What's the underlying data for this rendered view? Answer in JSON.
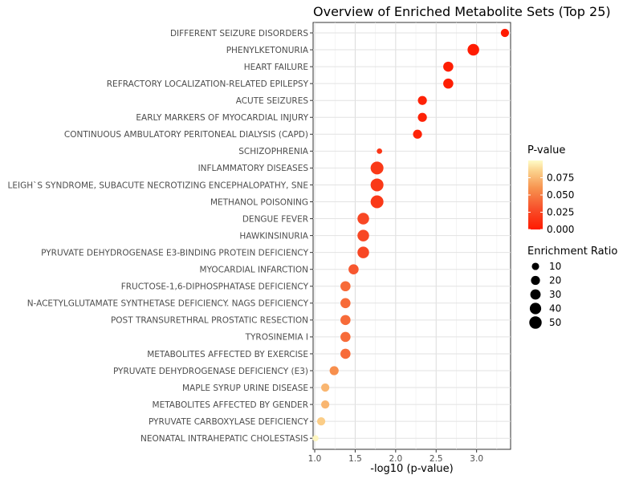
{
  "chart_data": {
    "type": "scatter",
    "title": "Overview of Enriched Metabolite Sets (Top 25)",
    "xlabel": "-log10 (p-value)",
    "ylabel": "",
    "xlim": [
      0.98,
      3.42
    ],
    "xticks": [
      "1.0",
      "1.5",
      "2.0",
      "2.5",
      "3.0"
    ],
    "grid": true,
    "legend_position": "right",
    "points": [
      {
        "name": "DIFFERENT SEIZURE DISORDERS",
        "x": 3.35,
        "p": 0.0005,
        "ratio": 15
      },
      {
        "name": "PHENYLKETONURIA",
        "x": 2.96,
        "p": 0.0011,
        "ratio": 42
      },
      {
        "name": "HEART FAILURE",
        "x": 2.65,
        "p": 0.0022,
        "ratio": 28
      },
      {
        "name": "REFRACTORY LOCALIZATION-RELATED EPILEPSY",
        "x": 2.65,
        "p": 0.0022,
        "ratio": 28
      },
      {
        "name": "ACUTE SEIZURES",
        "x": 2.33,
        "p": 0.0047,
        "ratio": 20
      },
      {
        "name": "EARLY MARKERS OF MYOCARDIAL INJURY",
        "x": 2.33,
        "p": 0.0047,
        "ratio": 20
      },
      {
        "name": "CONTINUOUS AMBULATORY PERITONEAL DIALYSIS (CAPD)",
        "x": 2.27,
        "p": 0.0054,
        "ratio": 20
      },
      {
        "name": "SCHIZOPHRENIA",
        "x": 1.8,
        "p": 0.0158,
        "ratio": 3
      },
      {
        "name": "INFLAMMATORY DISEASES",
        "x": 1.77,
        "p": 0.017,
        "ratio": 55
      },
      {
        "name": "LEIGH`S SYNDROME, SUBACUTE NECROTIZING ENCEPHALOPATHY, SNE",
        "x": 1.77,
        "p": 0.017,
        "ratio": 55
      },
      {
        "name": "METHANOL POISONING",
        "x": 1.77,
        "p": 0.017,
        "ratio": 55
      },
      {
        "name": "DENGUE FEVER",
        "x": 1.6,
        "p": 0.025,
        "ratio": 42
      },
      {
        "name": "HAWKINSINURIA",
        "x": 1.6,
        "p": 0.025,
        "ratio": 42
      },
      {
        "name": "PYRUVATE DEHYDROGENASE E3-BINDING PROTEIN DEFICIENCY",
        "x": 1.6,
        "p": 0.025,
        "ratio": 42
      },
      {
        "name": "MYOCARDIAL INFARCTION",
        "x": 1.48,
        "p": 0.033,
        "ratio": 28
      },
      {
        "name": "FRUCTOSE-1,6-DIPHOSPHATASE DEFICIENCY",
        "x": 1.38,
        "p": 0.042,
        "ratio": 28
      },
      {
        "name": "N-ACETYLGLUTAMATE SYNTHETASE DEFICIENCY. NAGS DEFICIENCY",
        "x": 1.38,
        "p": 0.042,
        "ratio": 28
      },
      {
        "name": "POST TRANSURETHRAL PROSTATIC RESECTION",
        "x": 1.38,
        "p": 0.042,
        "ratio": 28
      },
      {
        "name": "TYROSINEMIA I",
        "x": 1.38,
        "p": 0.042,
        "ratio": 28
      },
      {
        "name": "METABOLITES AFFECTED BY EXERCISE",
        "x": 1.38,
        "p": 0.042,
        "ratio": 28
      },
      {
        "name": "PYRUVATE DEHYDROGENASE DEFICIENCY (E3)",
        "x": 1.24,
        "p": 0.058,
        "ratio": 20
      },
      {
        "name": "MAPLE SYRUP URINE DISEASE",
        "x": 1.13,
        "p": 0.074,
        "ratio": 15
      },
      {
        "name": "METABOLITES AFFECTED BY GENDER",
        "x": 1.13,
        "p": 0.074,
        "ratio": 15
      },
      {
        "name": "PYRUVATE CARBOXYLASE DEFICIENCY",
        "x": 1.08,
        "p": 0.083,
        "ratio": 15
      },
      {
        "name": "NEONATAL INTRAHEPATIC CHOLESTASIS",
        "x": 1.01,
        "p": 0.098,
        "ratio": 5
      }
    ],
    "color_legend": {
      "title": "P-value",
      "ticks": [
        "0.075",
        "0.050",
        "0.025",
        "0.000"
      ],
      "low_color": "#ff1a00",
      "high_color": "#fffcc8"
    },
    "size_legend": {
      "title": "Enrichment Ratio",
      "entries": [
        "10",
        "20",
        "30",
        "40",
        "50"
      ]
    }
  }
}
